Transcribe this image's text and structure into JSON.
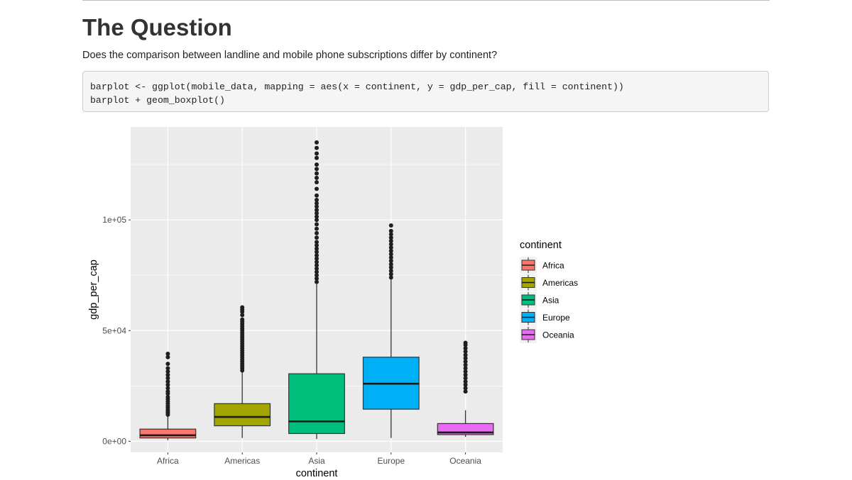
{
  "page": {
    "title": "The Question",
    "question": "Does the comparison between landline and mobile phone subscriptions differ by continent?",
    "code_lines": [
      "barplot <- ggplot(mobile_data, mapping = aes(x = continent, y = gdp_per_cap, fill = continent))",
      "barplot + geom_boxplot()"
    ]
  },
  "chart_data": {
    "type": "boxplot",
    "xlabel": "continent",
    "ylabel": "gdp_per_cap",
    "ylim": [
      -5000,
      142000
    ],
    "yticks": [
      0,
      50000,
      100000
    ],
    "ytick_labels": [
      "0e+00",
      "5e+04",
      "1e+05"
    ],
    "grid": true,
    "legend": {
      "title": "continent",
      "position": "right"
    },
    "categories": [
      "Africa",
      "Americas",
      "Asia",
      "Europe",
      "Oceania"
    ],
    "colors": [
      "#F8766D",
      "#A3A500",
      "#00BF7D",
      "#00B0F6",
      "#E76BF3"
    ],
    "boxes": [
      {
        "name": "Africa",
        "whisker_low": 500,
        "q1": 1500,
        "median": 2700,
        "q3": 5500,
        "whisker_high": 11500,
        "outliers": [
          12000,
          12800,
          13500,
          14300,
          15200,
          16000,
          17000,
          18000,
          19000,
          20000,
          21500,
          22500,
          24000,
          25500,
          27000,
          28500,
          30000,
          31500,
          33000,
          35000,
          38000,
          39500
        ]
      },
      {
        "name": "Americas",
        "whisker_low": 1500,
        "q1": 7000,
        "median": 11000,
        "q3": 17000,
        "whisker_high": 31500,
        "outliers": [
          32000,
          33000,
          34000,
          35000,
          36000,
          37000,
          38000,
          39000,
          40000,
          41000,
          42000,
          43000,
          44000,
          45000,
          46000,
          47000,
          48000,
          49000,
          50000,
          51000,
          52000,
          53000,
          54000,
          55000,
          57000,
          58500,
          59500,
          60500
        ]
      },
      {
        "name": "Asia",
        "whisker_low": 1000,
        "q1": 3500,
        "median": 9000,
        "q3": 30500,
        "whisker_high": 71000,
        "outliers": [
          72000,
          73500,
          75000,
          76500,
          78000,
          79500,
          81000,
          82500,
          84000,
          85500,
          87000,
          88500,
          90000,
          92000,
          94000,
          96000,
          98000,
          100000,
          101500,
          103000,
          104500,
          106000,
          107500,
          109000,
          111000,
          114000,
          117000,
          119000,
          121000,
          123000,
          125000,
          128000,
          130000,
          132500,
          135000
        ]
      },
      {
        "name": "Europe",
        "whisker_low": 1500,
        "q1": 14500,
        "median": 26000,
        "q3": 38000,
        "whisker_high": 73000,
        "outliers": [
          74000,
          75500,
          77000,
          78500,
          80000,
          81500,
          83000,
          84500,
          86000,
          87500,
          89000,
          90500,
          92000,
          93500,
          95000,
          97500
        ]
      },
      {
        "name": "Oceania",
        "whisker_low": 2000,
        "q1": 3000,
        "median": 4000,
        "q3": 8000,
        "whisker_high": 14000,
        "outliers": [
          22500,
          24000,
          25500,
          27000,
          28500,
          30000,
          31500,
          33000,
          34500,
          36000,
          37500,
          39000,
          40500,
          42000,
          43500,
          44500
        ]
      }
    ]
  }
}
